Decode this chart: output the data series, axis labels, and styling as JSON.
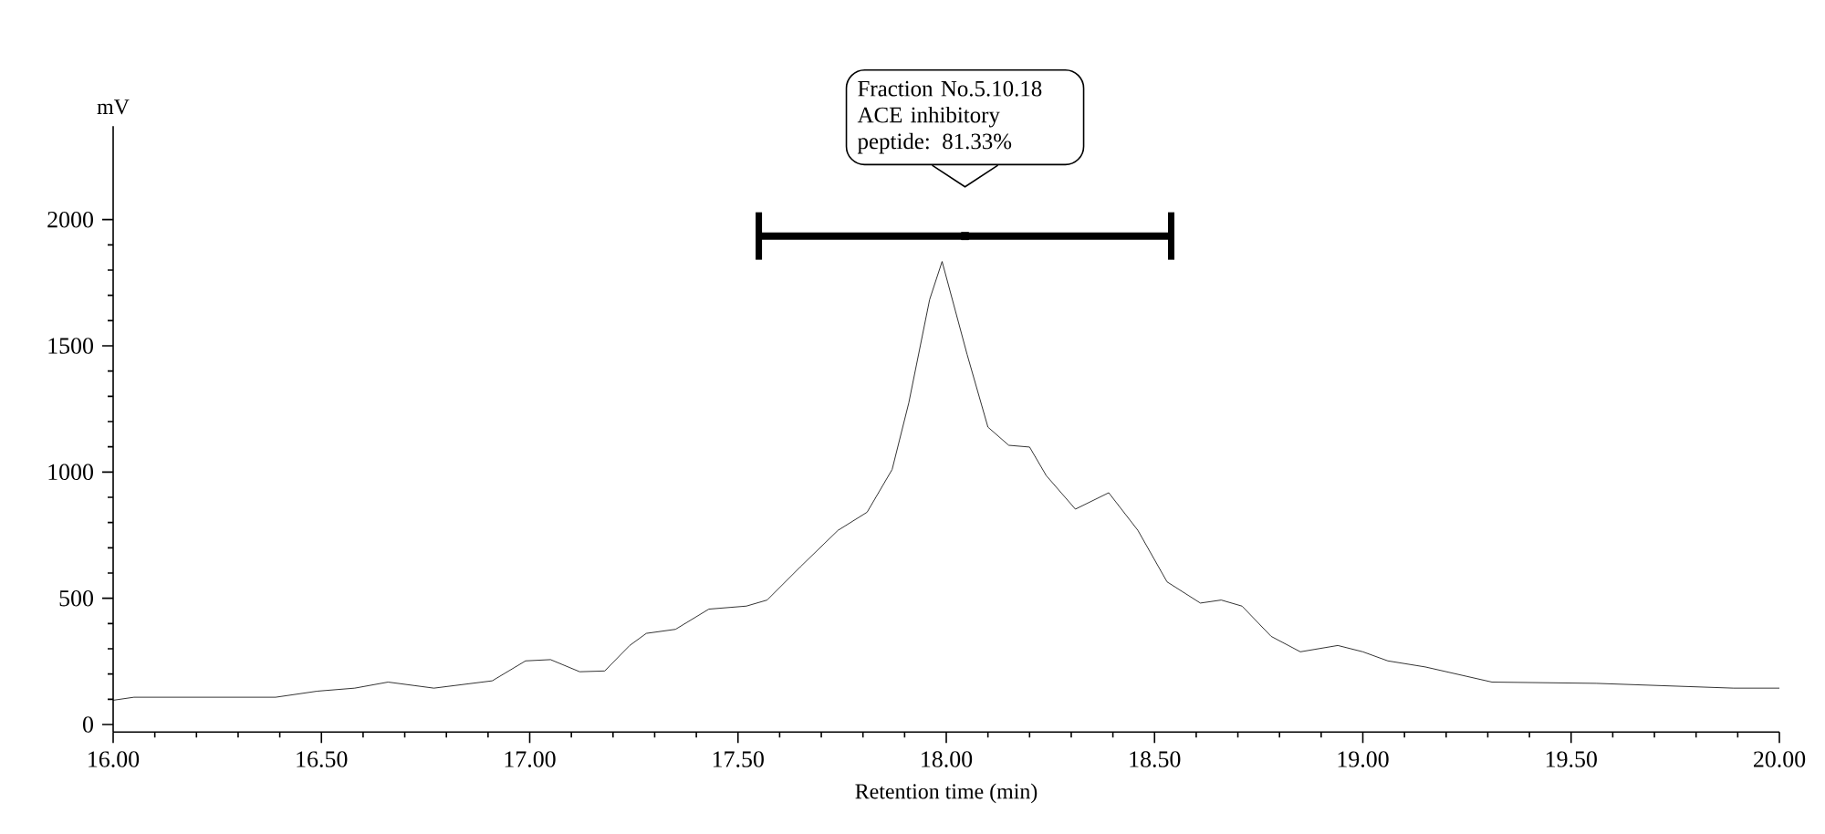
{
  "chart_data": {
    "type": "line",
    "xlabel": "Retention time (min)",
    "ylabel": "mV",
    "series": [
      {
        "color": "#000000",
        "line_style": "solid",
        "marker": "none",
        "x": [
          16.0,
          16.05,
          16.39,
          16.49,
          16.58,
          16.66,
          16.77,
          16.91,
          16.99,
          17.05,
          17.12,
          17.18,
          17.24,
          17.28,
          17.35,
          17.43,
          17.52,
          17.57,
          17.65,
          17.74,
          17.81,
          17.87,
          17.91,
          17.96,
          17.99,
          18.05,
          18.1,
          18.15,
          18.2,
          18.24,
          18.31,
          18.39,
          18.46,
          18.53,
          18.61,
          18.66,
          18.71,
          18.78,
          18.85,
          18.94,
          19.0,
          19.06,
          19.15,
          19.31,
          19.56,
          19.89,
          20.0
        ],
        "values": [
          96,
          108,
          108,
          132,
          144,
          168,
          144,
          173,
          252,
          257,
          209,
          212,
          313,
          361,
          377,
          457,
          469,
          493,
          625,
          769,
          841,
          1010,
          1274,
          1683,
          1834,
          1466,
          1178,
          1106,
          1099,
          986,
          853,
          918,
          769,
          565,
          481,
          493,
          469,
          349,
          288,
          313,
          288,
          252,
          228,
          168,
          163,
          144,
          144
        ]
      },
      {
        "type": "scatter",
        "color": "#000000",
        "marker": "square",
        "x": [
          18.045
        ],
        "values": [
          1935
        ],
        "xerrors": [
          [
            17.55,
            18.54
          ]
        ]
      }
    ],
    "xlim": [
      16,
      20
    ],
    "ylim": [
      -30,
      2370
    ],
    "xticks": [
      {
        "value": 16,
        "label": "16.00"
      },
      {
        "value": 16.5,
        "label": "16.50"
      },
      {
        "value": 17,
        "label": "17.00"
      },
      {
        "value": 17.5,
        "label": "17.50"
      },
      {
        "value": 18,
        "label": "18.00"
      },
      {
        "value": 18.5,
        "label": "18.50"
      },
      {
        "value": 19,
        "label": "19.00"
      },
      {
        "value": 19.5,
        "label": "19.50"
      },
      {
        "value": 20,
        "label": "20.00"
      }
    ],
    "yticks": [
      0,
      500,
      1000,
      1500,
      2000
    ],
    "annotations": [
      "Fraction No.5.10.18 ACE inhibitory peptide: 81.33%"
    ],
    "grid": false
  }
}
